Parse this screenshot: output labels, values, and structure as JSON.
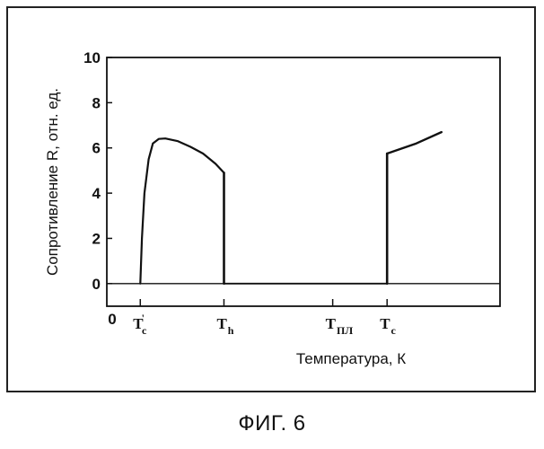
{
  "caption": "ФИГ. 6",
  "chart_data": {
    "type": "line",
    "title": "",
    "xlabel": "Температура, К",
    "ylabel": "Сопротивление R, отн. ед.",
    "ylim": [
      -1,
      10
    ],
    "xlim": [
      0,
      4.7
    ],
    "grid": false,
    "y_ticks": [
      "0",
      "2",
      "4",
      "6",
      "8",
      "10"
    ],
    "x_origin_label": "0",
    "x_marks": [
      {
        "name": "T'c",
        "x": 0.4,
        "main": "T",
        "sub": "c",
        "prime": "'"
      },
      {
        "name": "Th",
        "x": 1.4,
        "main": "T",
        "sub": "h",
        "prime": ""
      },
      {
        "name": "Tпл",
        "x": 2.7,
        "main": "T",
        "sub": "ПЛ",
        "prime": ""
      },
      {
        "name": "Tc",
        "x": 3.35,
        "main": "T",
        "sub": "c",
        "prime": ""
      }
    ],
    "series": [
      {
        "values": [
          [
            0.4,
            0
          ],
          [
            0.42,
            2.0
          ],
          [
            0.45,
            4.0
          ],
          [
            0.5,
            5.5
          ],
          [
            0.55,
            6.2
          ],
          [
            0.62,
            6.4
          ],
          [
            0.7,
            6.42
          ],
          [
            0.85,
            6.3
          ],
          [
            1.0,
            6.05
          ],
          [
            1.15,
            5.75
          ],
          [
            1.3,
            5.3
          ],
          [
            1.4,
            4.9
          ]
        ]
      },
      {
        "values": [
          [
            1.4,
            4.9
          ],
          [
            1.4,
            0
          ]
        ]
      },
      {
        "values": [
          [
            1.4,
            0
          ],
          [
            2.7,
            0
          ],
          [
            3.35,
            0
          ]
        ]
      },
      {
        "values": [
          [
            3.35,
            0
          ],
          [
            3.35,
            5.75
          ]
        ]
      },
      {
        "values": [
          [
            3.35,
            5.75
          ],
          [
            3.7,
            6.2
          ],
          [
            4.0,
            6.7
          ]
        ]
      }
    ]
  }
}
